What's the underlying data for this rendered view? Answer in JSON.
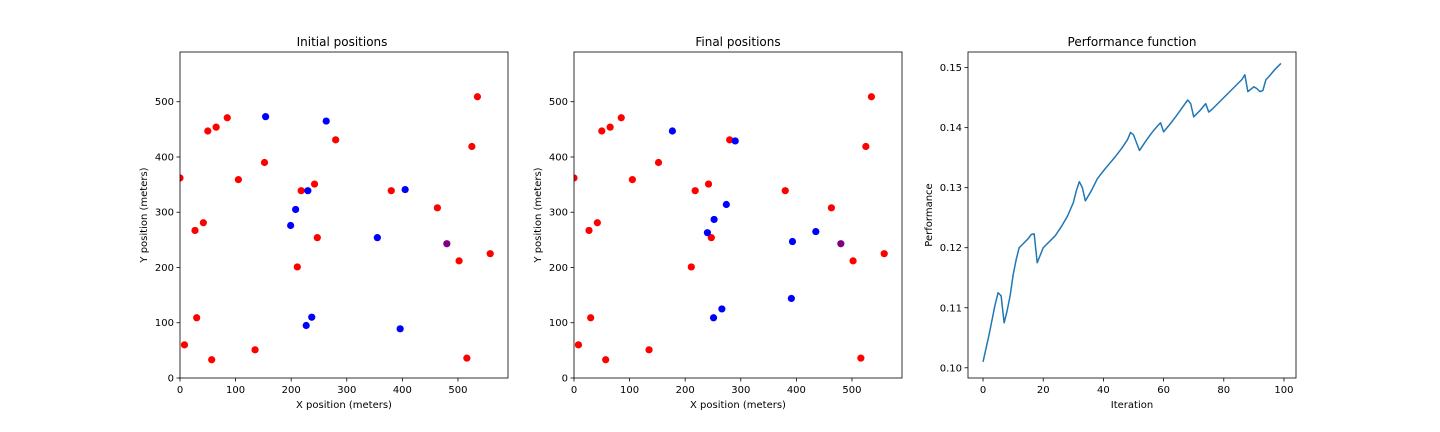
{
  "figure": {
    "background": "#ffffff"
  },
  "colors": {
    "red": "#ff0000",
    "blue": "#0000ff",
    "purple": "#800080",
    "line": "#1f77b4"
  },
  "chart_data": [
    {
      "type": "scatter",
      "title": "Initial positions",
      "xlabel": "X position (meters)",
      "ylabel": "Y position (meters)",
      "xlim": [
        0,
        590
      ],
      "ylim": [
        0,
        590
      ],
      "xticks": [
        0,
        100,
        200,
        300,
        400,
        500
      ],
      "yticks": [
        0,
        100,
        200,
        300,
        400,
        500
      ],
      "grid": false,
      "series": [
        {
          "color": "red",
          "points": [
            [
              0,
              362
            ],
            [
              8,
              60
            ],
            [
              27,
              267
            ],
            [
              30,
              109
            ],
            [
              42,
              281
            ],
            [
              50,
              447
            ],
            [
              57,
              33
            ],
            [
              65,
              454
            ],
            [
              85,
              471
            ],
            [
              105,
              359
            ],
            [
              135,
              51
            ],
            [
              152,
              390
            ],
            [
              211,
              201
            ],
            [
              218,
              339
            ],
            [
              242,
              351
            ],
            [
              247,
              254
            ],
            [
              280,
              431
            ],
            [
              380,
              339
            ],
            [
              463,
              308
            ],
            [
              502,
              212
            ],
            [
              516,
              36
            ],
            [
              525,
              419
            ],
            [
              535,
              509
            ],
            [
              558,
              225
            ]
          ]
        },
        {
          "color": "blue",
          "points": [
            [
              154,
              473
            ],
            [
              199,
              276
            ],
            [
              208,
              305
            ],
            [
              227,
              95
            ],
            [
              230,
              339
            ],
            [
              237,
              110
            ],
            [
              263,
              465
            ],
            [
              355,
              254
            ],
            [
              396,
              89
            ],
            [
              405,
              341
            ]
          ]
        },
        {
          "color": "purple",
          "points": [
            [
              480,
              243
            ]
          ]
        }
      ]
    },
    {
      "type": "scatter",
      "title": "Final positions",
      "xlabel": "X position (meters)",
      "ylabel": "Y position (meters)",
      "xlim": [
        0,
        590
      ],
      "ylim": [
        0,
        590
      ],
      "xticks": [
        0,
        100,
        200,
        300,
        400,
        500
      ],
      "yticks": [
        0,
        100,
        200,
        300,
        400,
        500
      ],
      "grid": false,
      "series": [
        {
          "color": "red",
          "points": [
            [
              0,
              362
            ],
            [
              8,
              60
            ],
            [
              27,
              267
            ],
            [
              30,
              109
            ],
            [
              42,
              281
            ],
            [
              50,
              447
            ],
            [
              57,
              33
            ],
            [
              65,
              454
            ],
            [
              85,
              471
            ],
            [
              105,
              359
            ],
            [
              135,
              51
            ],
            [
              152,
              390
            ],
            [
              211,
              201
            ],
            [
              218,
              339
            ],
            [
              242,
              351
            ],
            [
              247,
              254
            ],
            [
              280,
              431
            ],
            [
              380,
              339
            ],
            [
              463,
              308
            ],
            [
              502,
              212
            ],
            [
              516,
              36
            ],
            [
              525,
              419
            ],
            [
              535,
              509
            ],
            [
              558,
              225
            ]
          ]
        },
        {
          "color": "blue",
          "points": [
            [
              177,
              447
            ],
            [
              240,
              263
            ],
            [
              251,
              109
            ],
            [
              252,
              287
            ],
            [
              266,
              125
            ],
            [
              274,
              314
            ],
            [
              290,
              429
            ],
            [
              391,
              144
            ],
            [
              393,
              247
            ],
            [
              435,
              265
            ]
          ]
        },
        {
          "color": "purple",
          "points": [
            [
              480,
              243
            ]
          ]
        }
      ]
    },
    {
      "type": "line",
      "title": "Performance function",
      "xlabel": "Iteration",
      "ylabel": "Performance",
      "xlim": [
        -5,
        104
      ],
      "ylim": [
        0.0983,
        0.1526
      ],
      "xticks": [
        0,
        20,
        40,
        60,
        80,
        100
      ],
      "yticks": [
        0.1,
        0.11,
        0.12,
        0.13,
        0.14,
        0.15
      ],
      "ytick_labels": [
        "0.10",
        "0.11",
        "0.12",
        "0.13",
        "0.14",
        "0.15"
      ],
      "grid": false,
      "series": [
        {
          "color": "line",
          "x": [
            0,
            2,
            4,
            5,
            6,
            7,
            8,
            9,
            10,
            11,
            12,
            13,
            14,
            15,
            16,
            17,
            18,
            20,
            22,
            24,
            26,
            28,
            30,
            31,
            32,
            33,
            34,
            36,
            38,
            40,
            42,
            44,
            46,
            48,
            49,
            50,
            52,
            54,
            56,
            58,
            59,
            60,
            62,
            64,
            66,
            68,
            69,
            70,
            72,
            74,
            75,
            76,
            78,
            80,
            82,
            84,
            86,
            87,
            88,
            90,
            91,
            92,
            93,
            94,
            95,
            96,
            97,
            98,
            99
          ],
          "y": [
            0.101,
            0.1055,
            0.1105,
            0.1125,
            0.112,
            0.1075,
            0.1095,
            0.112,
            0.1155,
            0.118,
            0.12,
            0.1205,
            0.121,
            0.1215,
            0.1222,
            0.1223,
            0.1175,
            0.12,
            0.121,
            0.122,
            0.1235,
            0.1252,
            0.1275,
            0.1295,
            0.131,
            0.13,
            0.1278,
            0.1295,
            0.1315,
            0.1328,
            0.134,
            0.1352,
            0.1365,
            0.138,
            0.1392,
            0.1388,
            0.1362,
            0.1377,
            0.1391,
            0.1403,
            0.1408,
            0.1393,
            0.1405,
            0.1418,
            0.1432,
            0.1446,
            0.144,
            0.1418,
            0.1428,
            0.144,
            0.1426,
            0.143,
            0.144,
            0.145,
            0.146,
            0.147,
            0.148,
            0.1488,
            0.146,
            0.1468,
            0.1465,
            0.146,
            0.1462,
            0.148,
            0.1485,
            0.1491,
            0.1497,
            0.1502,
            0.1507
          ]
        }
      ]
    }
  ]
}
